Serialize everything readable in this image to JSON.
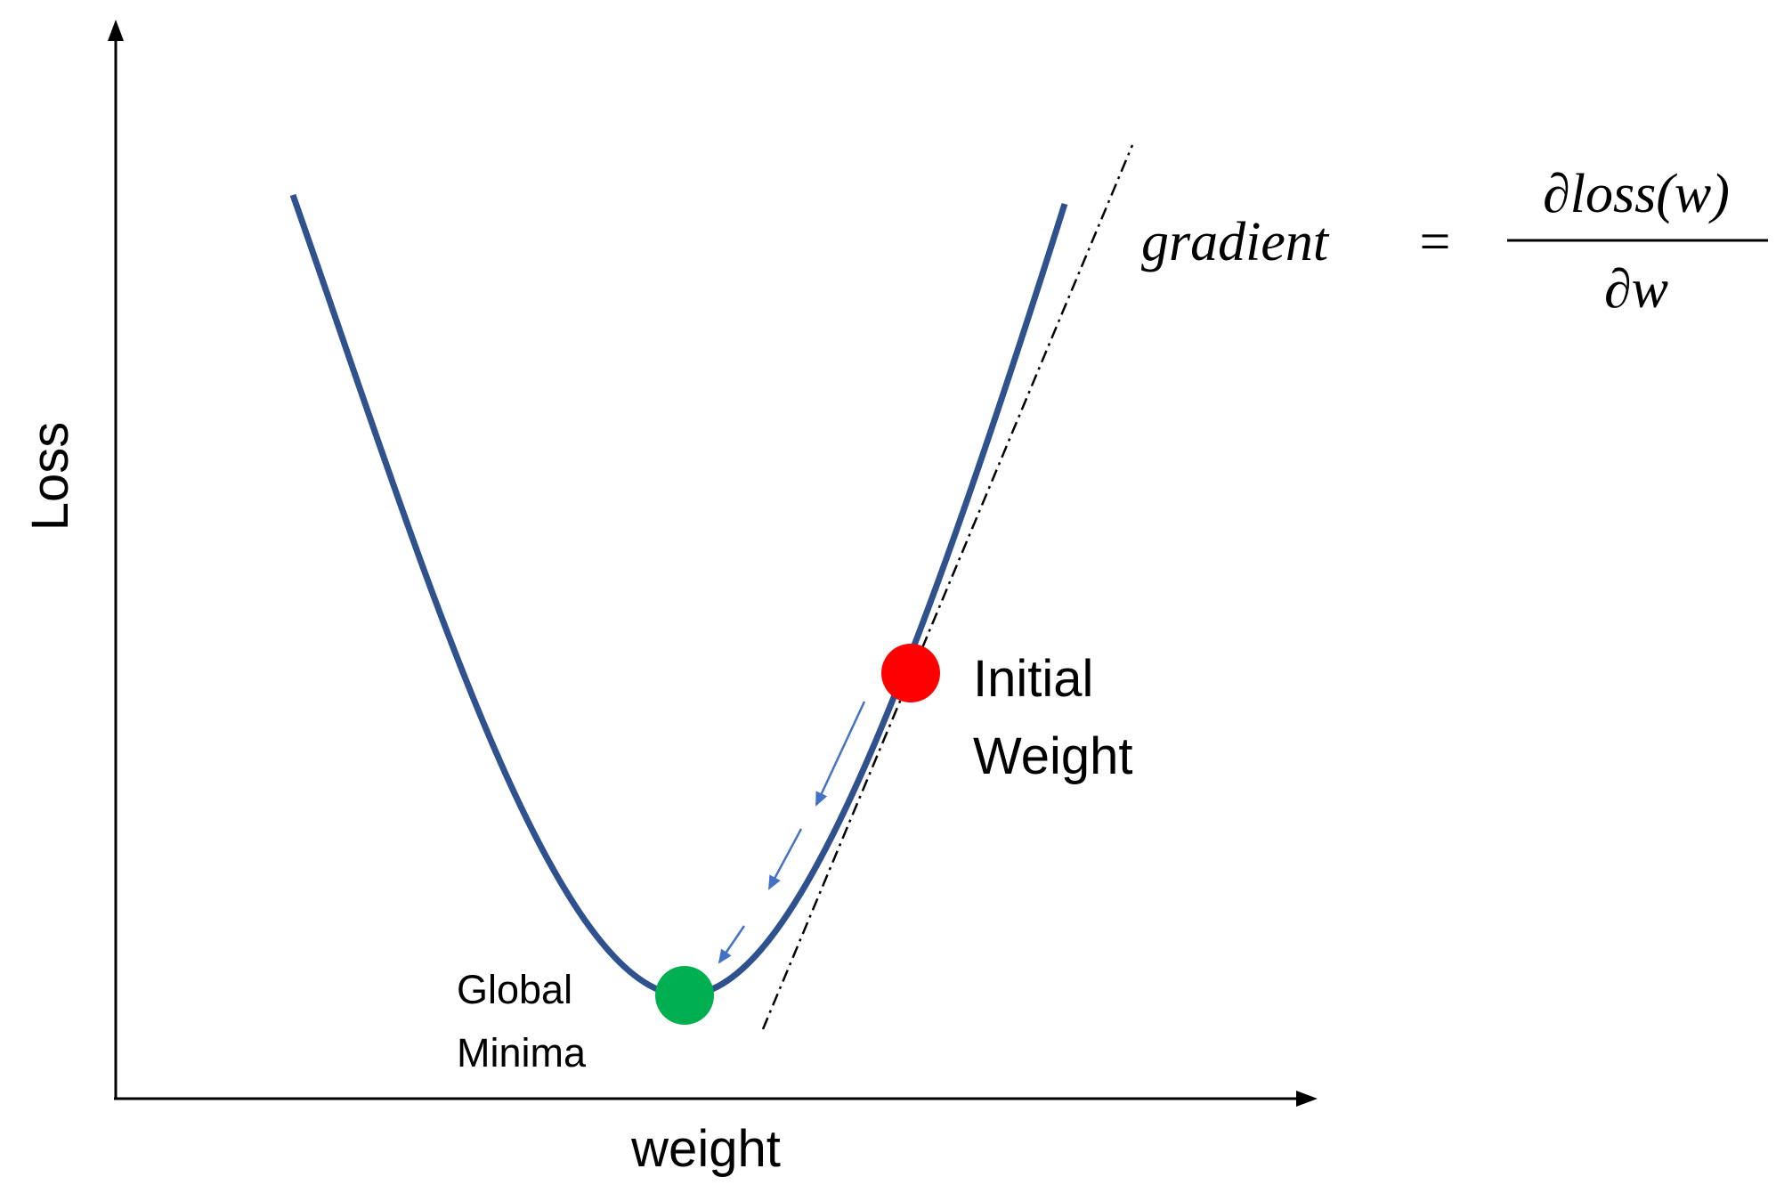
{
  "axes": {
    "x_label": "weight",
    "y_label": "Loss"
  },
  "points": {
    "initial": {
      "label": [
        "Initial",
        "Weight"
      ]
    },
    "minimum": {
      "label": [
        "Global",
        "Minima"
      ]
    }
  },
  "formula": {
    "lhs": "gradient",
    "equals": "=",
    "numerator": "∂loss(w)",
    "denominator": "∂w"
  }
}
